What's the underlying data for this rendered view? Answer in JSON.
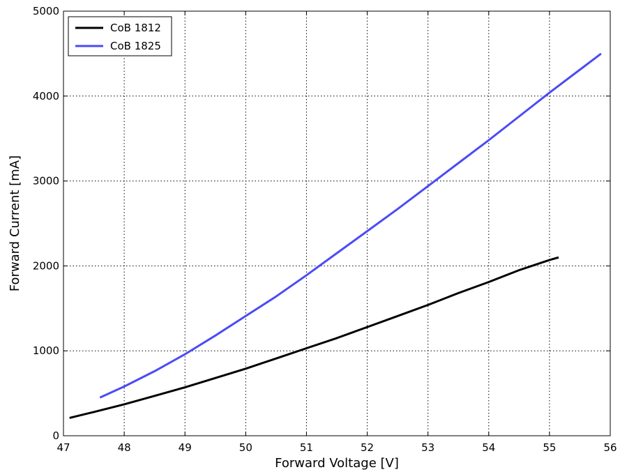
{
  "chart_data": {
    "type": "line",
    "xlabel": "Forward Voltage [V]",
    "ylabel": "Forward Current [mA]",
    "xlim": [
      47,
      56
    ],
    "ylim": [
      0,
      5000
    ],
    "x_ticks": [
      "47",
      "48",
      "49",
      "50",
      "51",
      "52",
      "53",
      "54",
      "55",
      "56"
    ],
    "y_ticks": [
      "0",
      "1000",
      "2000",
      "3000",
      "4000",
      "5000"
    ],
    "grid": true,
    "legend_position": "top-left",
    "series": [
      {
        "name": "CoB 1812",
        "color": "#000000",
        "x": [
          47.1,
          47.5,
          48.0,
          48.5,
          49.0,
          49.5,
          50.0,
          50.5,
          51.0,
          51.5,
          52.0,
          52.5,
          53.0,
          53.5,
          54.0,
          54.5,
          55.0,
          55.15
        ],
        "y": [
          210,
          280,
          370,
          470,
          570,
          680,
          790,
          910,
          1030,
          1150,
          1280,
          1410,
          1540,
          1680,
          1810,
          1950,
          2070,
          2100
        ]
      },
      {
        "name": "CoB 1825",
        "color": "#4b4bf5",
        "x": [
          47.6,
          48.0,
          48.5,
          49.0,
          49.5,
          50.0,
          50.5,
          51.0,
          51.5,
          52.0,
          52.5,
          53.0,
          53.5,
          54.0,
          54.5,
          55.0,
          55.5,
          55.85
        ],
        "y": [
          450,
          580,
          760,
          960,
          1180,
          1410,
          1640,
          1890,
          2150,
          2410,
          2670,
          2940,
          3210,
          3480,
          3760,
          4040,
          4310,
          4500
        ]
      }
    ]
  }
}
